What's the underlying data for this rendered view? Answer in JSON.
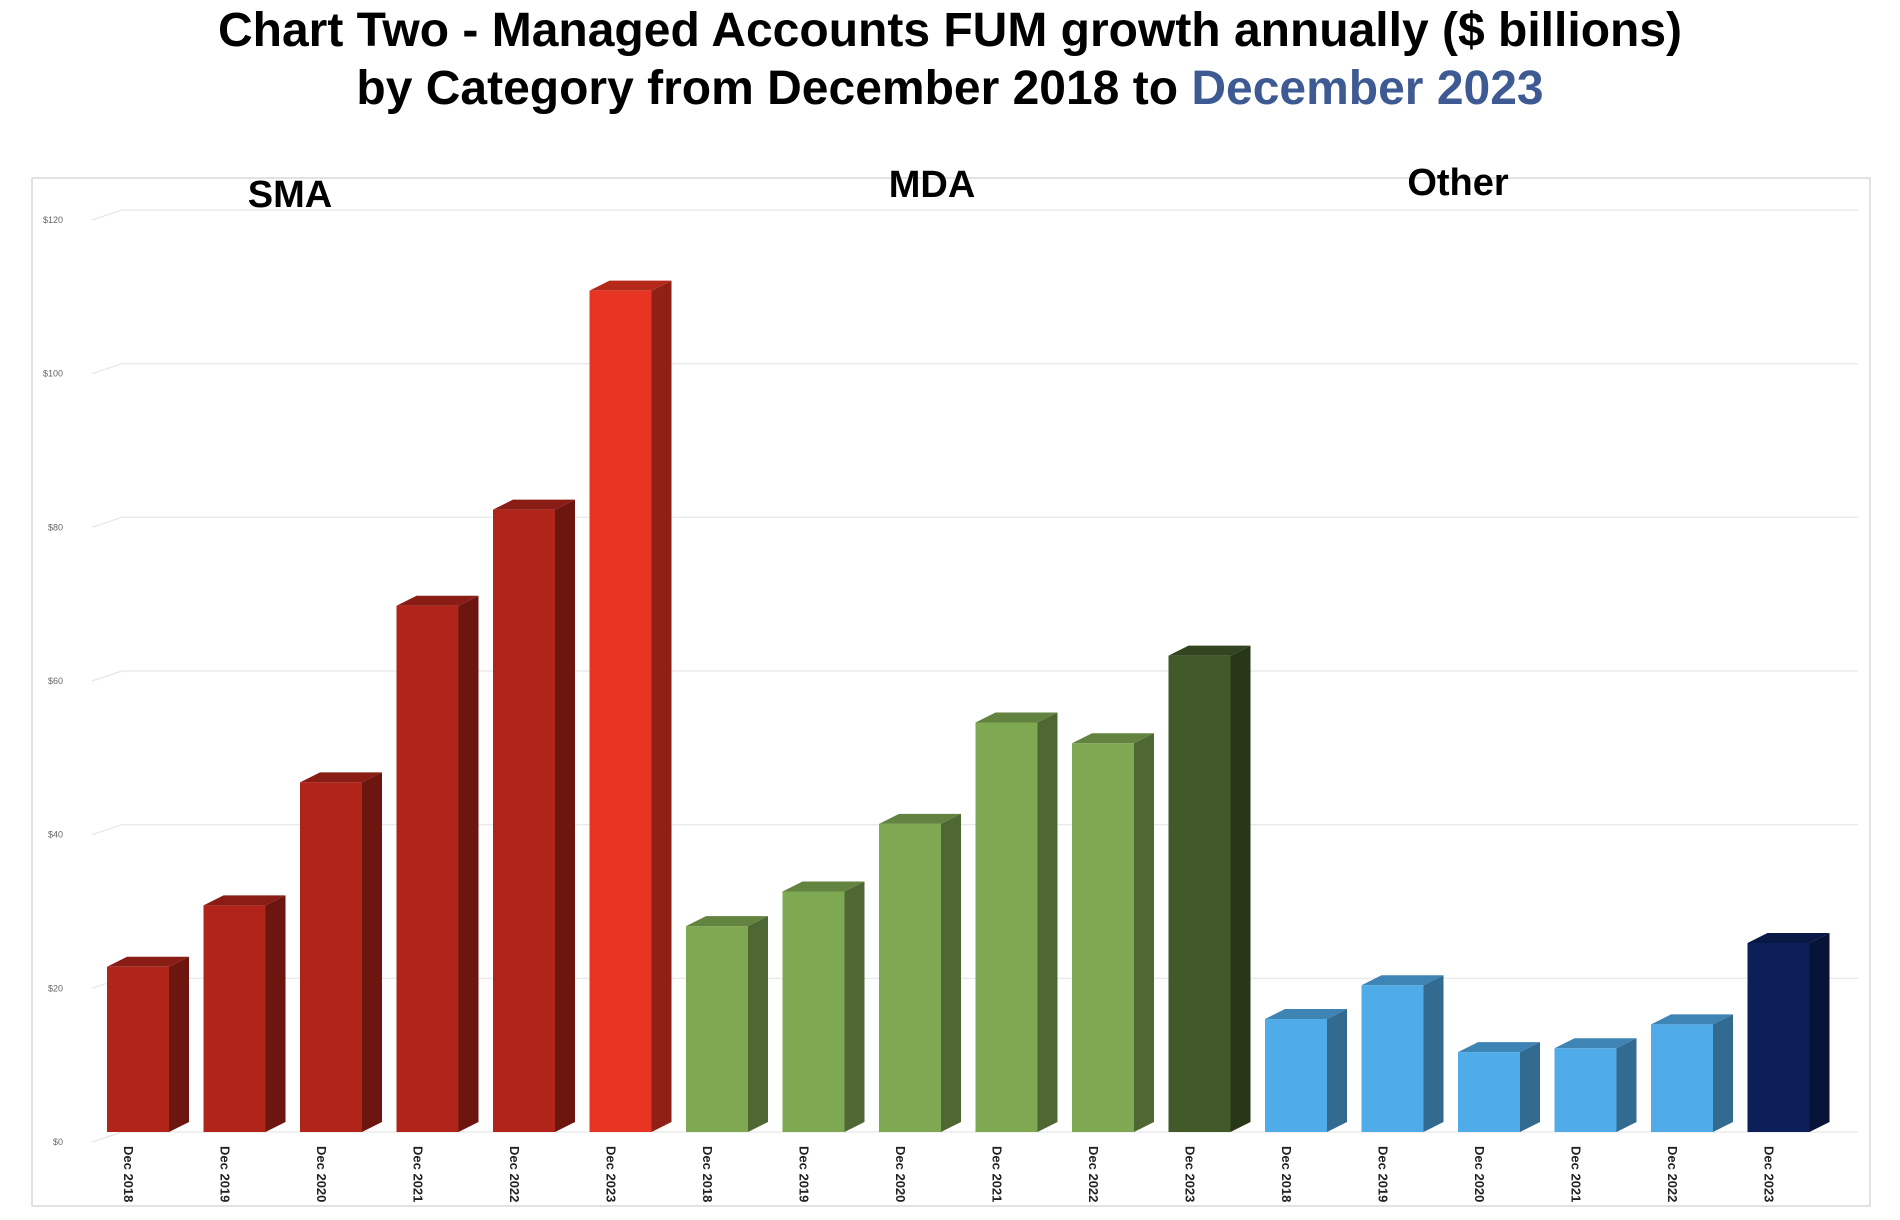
{
  "title": {
    "line1": "Chart Two - Managed Accounts FUM growth annually ($ billions)",
    "line2_prefix": "by Category from December 2018 to ",
    "line2_highlight": "December 2023"
  },
  "colors": {
    "title_highlight": "#3d5a93",
    "SMA": "#b0241a",
    "SMA_latest": "#e83423",
    "MDA": "#7fa853",
    "MDA_latest": "#425929",
    "Other": "#50abe9",
    "Other_latest": "#0c1f59",
    "grid": "#e6e6e6"
  },
  "chart_data": {
    "type": "bar",
    "style": "3d-columns",
    "y_tick_labels": [
      "$0",
      "$20",
      "$40",
      "$60",
      "$80",
      "$100",
      "$120"
    ],
    "ylim": [
      0,
      120
    ],
    "grid": true,
    "groups": [
      {
        "name": "SMA",
        "categories": [
          "Dec 2018",
          "Dec 2019",
          "Dec 2020",
          "Dec 2021",
          "Dec 2022",
          "Dec 2023"
        ],
        "values": [
          21.5,
          29.5,
          45.5,
          68.5,
          81,
          109.5
        ]
      },
      {
        "name": "MDA",
        "categories": [
          "Dec 2018",
          "Dec 2019",
          "Dec 2020",
          "Dec 2021",
          "Dec 2022",
          "Dec 2023"
        ],
        "values": [
          26.8,
          31.3,
          40.1,
          53.3,
          50.6,
          62
        ]
      },
      {
        "name": "Other",
        "categories": [
          "Dec 2018",
          "Dec 2019",
          "Dec 2020",
          "Dec 2021",
          "Dec 2022",
          "Dec 2023"
        ],
        "values": [
          14.7,
          19.1,
          10.4,
          10.9,
          14,
          24.6
        ]
      }
    ]
  }
}
